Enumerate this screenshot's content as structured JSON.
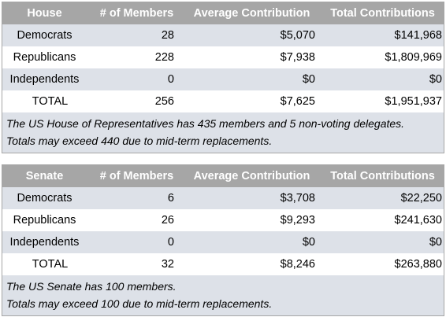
{
  "house": {
    "headers": [
      "House",
      "# of Members",
      "Average Contribution",
      "Total Contributions"
    ],
    "rows": [
      {
        "label": "Democrats",
        "members": "28",
        "average": "$5,070",
        "total": "$141,968"
      },
      {
        "label": "Republicans",
        "members": "228",
        "average": "$7,938",
        "total": "$1,809,969"
      },
      {
        "label": "Independents",
        "members": "0",
        "average": "$0",
        "total": "$0"
      },
      {
        "label": "TOTAL",
        "members": "256",
        "average": "$7,625",
        "total": "$1,951,937"
      }
    ],
    "note_line1": "The US House of Representatives has 435 members and 5 non-voting delegates.",
    "note_line2": "Totals may exceed 440 due to mid-term replacements."
  },
  "senate": {
    "headers": [
      "Senate",
      "# of Members",
      "Average Contribution",
      "Total Contributions"
    ],
    "rows": [
      {
        "label": "Democrats",
        "members": "6",
        "average": "$3,708",
        "total": "$22,250"
      },
      {
        "label": "Republicans",
        "members": "26",
        "average": "$9,293",
        "total": "$241,630"
      },
      {
        "label": "Independents",
        "members": "0",
        "average": "$0",
        "total": "$0"
      },
      {
        "label": "TOTAL",
        "members": "32",
        "average": "$8,246",
        "total": "$263,880"
      }
    ],
    "note_line1": "The US Senate has 100 members.",
    "note_line2": "Totals may exceed 100 due to mid-term replacements."
  },
  "colors": {
    "header_bg": "#a6a6a6",
    "header_text": "#ffffff",
    "shaded_row": "#dde1e8",
    "white_row": "#ffffff"
  }
}
